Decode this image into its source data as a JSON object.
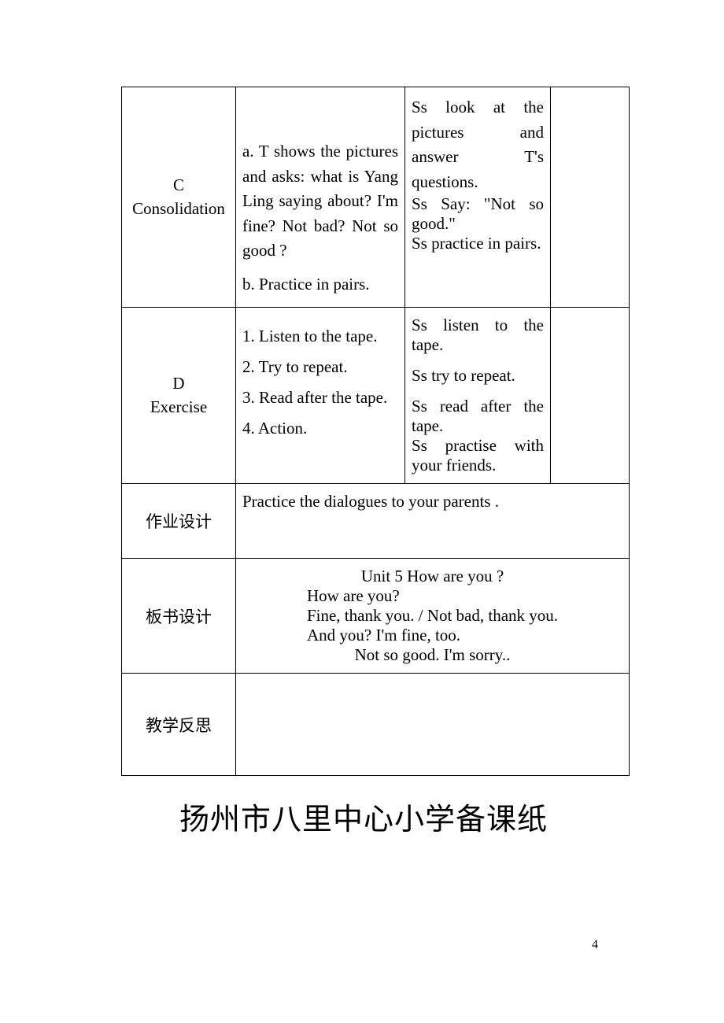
{
  "table": {
    "rowC": {
      "label_letter": "C",
      "label_text": "Consolidation",
      "teacher_a": "a. T shows the pictures and asks: what is Yang Ling saying about? I'm fine? Not bad? Not so good ?",
      "teacher_b": "b.  Practice in pairs.",
      "student_1": "Ss look at the pictures and answer T's questions.",
      "student_2": "Ss Say: \"Not so good.\"",
      "student_3": "Ss practice in pairs."
    },
    "rowD": {
      "label_letter": "D",
      "label_text": "Exercise",
      "teacher_1": "1. Listen to the tape.",
      "teacher_2": "2. Try to repeat.",
      "teacher_3": "3. Read after the tape.",
      "teacher_4": "4. Action.",
      "student_1": "Ss listen to the tape.",
      "student_2": "Ss try to repeat.",
      "student_3": "Ss read after the tape.",
      "student_4": "Ss practise with your friends."
    },
    "homework": {
      "label": "作业设计",
      "content": "Practice the dialogues to your parents ."
    },
    "board": {
      "label": "板书设计",
      "title": "Unit 5     How are you ?",
      "line1": "How are you?",
      "line2": "Fine, thank you. / Not bad, thank you.",
      "line3": "And you?   I'm fine, too.",
      "line4": "Not so good.   I'm sorry.."
    },
    "reflection": {
      "label": "教学反思"
    }
  },
  "footer": {
    "title": "扬州市八里中心小学备课纸"
  },
  "page_number": "4",
  "styles": {
    "background_color": "#ffffff",
    "text_color": "#000000",
    "border_color": "#000000",
    "body_font_size": 21,
    "footer_font_size": 38,
    "page_num_font_size": 16
  }
}
